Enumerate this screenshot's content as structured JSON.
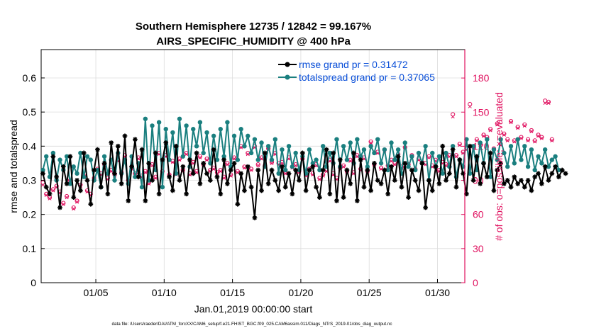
{
  "title": {
    "line1": "Southern Hemisphere 12735 / 12842 = 99.167%",
    "line2": "AIRS_SPECIFIC_HUMIDITY @ 400 hPa"
  },
  "axes": {
    "xlabel": "Jan.01,2019 00:00:00 start",
    "ylabel_left": "rmse and totalspread",
    "ylabel_right": "# of obs: o=possible; ×=evaluated",
    "footnote": "data file: /Users/raeder/DAI/ATM_forcXX/CAM6_setup/f.e21.FHIST_BGC.f09_025.CAM6assim.011/Diags_NTrS_2019-01/obs_diag_output.nc"
  },
  "colors": {
    "rmse": "#000000",
    "spread": "#1a7f7f",
    "obs": "#e0115f",
    "legend_text": "#0a4fd8",
    "grid": "#dcdcdc"
  },
  "chart_data": {
    "type": "line",
    "title": "Southern Hemisphere 12735 / 12842 = 99.167%  AIRS_SPECIFIC_HUMIDITY @ 400 hPa",
    "xlabel": "Jan.01,2019 00:00:00 start",
    "ylabel": "rmse and totalspread",
    "y2label": "# of obs: o=possible; ×=evaluated",
    "xlim": [
      1.0,
      32.0
    ],
    "ylim": [
      0,
      0.683
    ],
    "y2lim": [
      0,
      205
    ],
    "grid": true,
    "legend_position": "top-right",
    "x_ticks": [
      {
        "value": 5,
        "label": "01/05"
      },
      {
        "value": 10,
        "label": "01/10"
      },
      {
        "value": 15,
        "label": "01/15"
      },
      {
        "value": 20,
        "label": "01/20"
      },
      {
        "value": 25,
        "label": "01/25"
      },
      {
        "value": 30,
        "label": "01/30"
      }
    ],
    "y_ticks": [
      {
        "value": 0,
        "label": "0"
      },
      {
        "value": 0.1,
        "label": "0.1"
      },
      {
        "value": 0.2,
        "label": "0.2"
      },
      {
        "value": 0.3,
        "label": "0.3"
      },
      {
        "value": 0.4,
        "label": "0.4"
      },
      {
        "value": 0.5,
        "label": "0.5"
      },
      {
        "value": 0.6,
        "label": "0.6"
      }
    ],
    "y2_ticks": [
      {
        "value": 0,
        "label": "0"
      },
      {
        "value": 30,
        "label": "30"
      },
      {
        "value": 60,
        "label": "60"
      },
      {
        "value": 90,
        "label": "90"
      },
      {
        "value": 120,
        "label": "120"
      },
      {
        "value": 150,
        "label": "150"
      },
      {
        "value": 180,
        "label": "180"
      }
    ],
    "time": {
      "start": 1.125,
      "step": 0.25
    },
    "series": [
      {
        "name": "rmse",
        "legend_label": "rmse grand pr = 0.31472",
        "axis": "left",
        "marker": "star",
        "values": [
          0.32,
          0.28,
          0.26,
          0.37,
          0.31,
          0.22,
          0.34,
          0.29,
          0.37,
          0.25,
          0.3,
          0.27,
          0.38,
          0.3,
          0.23,
          0.33,
          0.39,
          0.28,
          0.35,
          0.26,
          0.41,
          0.32,
          0.4,
          0.29,
          0.43,
          0.24,
          0.34,
          0.42,
          0.31,
          0.39,
          0.24,
          0.35,
          0.3,
          0.38,
          0.26,
          0.36,
          0.41,
          0.31,
          0.27,
          0.4,
          0.3,
          0.34,
          0.26,
          0.36,
          0.32,
          0.38,
          0.29,
          0.35,
          0.32,
          0.3,
          0.39,
          0.31,
          0.26,
          0.36,
          0.29,
          0.33,
          0.35,
          0.23,
          0.32,
          0.27,
          0.34,
          0.28,
          0.19,
          0.33,
          0.27,
          0.38,
          0.29,
          0.33,
          0.3,
          0.27,
          0.34,
          0.28,
          0.32,
          0.26,
          0.33,
          0.3,
          0.38,
          0.27,
          0.33,
          0.34,
          0.28,
          0.25,
          0.33,
          0.39,
          0.26,
          0.38,
          0.24,
          0.36,
          0.25,
          0.33,
          0.29,
          0.38,
          0.24,
          0.36,
          0.28,
          0.33,
          0.27,
          0.35,
          0.3,
          0.29,
          0.33,
          0.26,
          0.34,
          0.3,
          0.37,
          0.28,
          0.35,
          0.25,
          0.33,
          0.3,
          0.27,
          0.35,
          0.22,
          0.3,
          0.27,
          0.34,
          0.29,
          0.4,
          0.3,
          0.32,
          0.39,
          0.28,
          0.36,
          0.32,
          0.26,
          0.4,
          0.3,
          0.37,
          0.29,
          0.35,
          0.31,
          0.38,
          0.27,
          0.33,
          0.35,
          0.29,
          0.3,
          0.28,
          0.31,
          0.29,
          0.3,
          0.28,
          0.3,
          0.27,
          0.31,
          0.32,
          0.29,
          0.34,
          0.3,
          0.32,
          0.34,
          0.31,
          0.33,
          0.32
        ]
      },
      {
        "name": "totalspread",
        "legend_label": "totalspread grand pr = 0.37065",
        "axis": "left",
        "marker": "dot",
        "values": [
          0.33,
          0.37,
          0.31,
          0.38,
          0.3,
          0.36,
          0.33,
          0.37,
          0.29,
          0.34,
          0.32,
          0.38,
          0.31,
          0.37,
          0.36,
          0.3,
          0.33,
          0.28,
          0.37,
          0.32,
          0.36,
          0.3,
          0.38,
          0.32,
          0.36,
          0.29,
          0.37,
          0.31,
          0.35,
          0.28,
          0.48,
          0.3,
          0.46,
          0.33,
          0.47,
          0.28,
          0.45,
          0.36,
          0.44,
          0.32,
          0.48,
          0.37,
          0.46,
          0.34,
          0.45,
          0.4,
          0.47,
          0.38,
          0.44,
          0.35,
          0.43,
          0.36,
          0.45,
          0.37,
          0.47,
          0.34,
          0.43,
          0.36,
          0.45,
          0.4,
          0.43,
          0.38,
          0.42,
          0.36,
          0.41,
          0.34,
          0.4,
          0.36,
          0.42,
          0.32,
          0.39,
          0.33,
          0.4,
          0.34,
          0.38,
          0.33,
          0.37,
          0.32,
          0.39,
          0.35,
          0.36,
          0.33,
          0.4,
          0.34,
          0.38,
          0.35,
          0.42,
          0.34,
          0.4,
          0.36,
          0.41,
          0.35,
          0.42,
          0.37,
          0.39,
          0.34,
          0.4,
          0.38,
          0.42,
          0.35,
          0.39,
          0.33,
          0.41,
          0.36,
          0.39,
          0.32,
          0.41,
          0.34,
          0.37,
          0.33,
          0.38,
          0.35,
          0.4,
          0.3,
          0.38,
          0.34,
          0.37,
          0.32,
          0.38,
          0.34,
          0.4,
          0.31,
          0.36,
          0.34,
          0.42,
          0.32,
          0.4,
          0.33,
          0.41,
          0.35,
          0.42,
          0.31,
          0.39,
          0.36,
          0.42,
          0.38,
          0.34,
          0.4,
          0.35,
          0.42,
          0.36,
          0.4,
          0.34,
          0.39,
          0.33,
          0.37,
          0.35,
          0.39,
          0.34,
          0.36,
          0.37,
          0.33
        ]
      },
      {
        "name": "obs_possible",
        "axis": "right",
        "marker": "circle",
        "values": [
          88,
          78,
          75,
          82,
          85,
          80,
          70,
          76,
          90,
          66,
          72,
          86,
          94,
          81,
          78,
          92,
          100,
          96,
          104,
          92,
          99,
          95,
          108,
          97,
          112,
          90,
          101,
          96,
          110,
          94,
          98,
          88,
          104,
          93,
          114,
          98,
          112,
          95,
          107,
          96,
          109,
          99,
          114,
          96,
          106,
          98,
          111,
          104,
          109,
          99,
          101,
          97,
          99,
          93,
          105,
          95,
          110,
          98,
          120,
          102,
          114,
          100,
          120,
          104,
          110,
          103,
          118,
          106,
          114,
          105,
          106,
          97,
          110,
          102,
          104,
          98,
          109,
          95,
          100,
          96,
          104,
          92,
          95,
          99,
          108,
          96,
          92,
          101,
          103,
          98,
          108,
          97,
          112,
          100,
          110,
          98,
          124,
          104,
          115,
          101,
          117,
          103,
          108,
          105,
          113,
          102,
          119,
          104,
          112,
          100,
          109,
          106,
          105,
          111,
          103,
          108,
          99,
          106,
          104,
          112,
          148,
          112,
          122,
          115,
          118,
          157,
          120,
          126,
          122,
          130,
          128,
          135,
          118,
          140,
          122,
          131,
          126,
          142,
          125,
          137,
          128,
          139,
          126,
          134,
          125,
          130,
          128,
          160,
          159,
          126
        ]
      },
      {
        "name": "obs_evaluated",
        "axis": "right",
        "marker": "x",
        "values": [
          86,
          77,
          74,
          81,
          84,
          79,
          69,
          75,
          89,
          65,
          71,
          85,
          93,
          80,
          77,
          91,
          99,
          95,
          103,
          91,
          98,
          94,
          107,
          96,
          111,
          89,
          100,
          95,
          109,
          93,
          97,
          87,
          103,
          92,
          113,
          97,
          111,
          94,
          106,
          95,
          108,
          98,
          113,
          95,
          105,
          97,
          110,
          103,
          108,
          98,
          100,
          96,
          98,
          92,
          104,
          94,
          109,
          97,
          119,
          101,
          113,
          99,
          119,
          103,
          109,
          102,
          117,
          105,
          113,
          104,
          105,
          96,
          109,
          101,
          103,
          97,
          108,
          94,
          99,
          95,
          103,
          91,
          94,
          98,
          107,
          95,
          91,
          100,
          102,
          97,
          107,
          96,
          111,
          99,
          109,
          97,
          123,
          103,
          114,
          100,
          116,
          102,
          107,
          104,
          112,
          101,
          118,
          103,
          111,
          99,
          108,
          105,
          104,
          110,
          102,
          107,
          98,
          105,
          103,
          111,
          146,
          111,
          121,
          114,
          117,
          155,
          119,
          125,
          121,
          129,
          127,
          134,
          117,
          139,
          121,
          130,
          125,
          141,
          124,
          136,
          127,
          138,
          125,
          133,
          124,
          129,
          127,
          158,
          158,
          125
        ]
      }
    ]
  }
}
